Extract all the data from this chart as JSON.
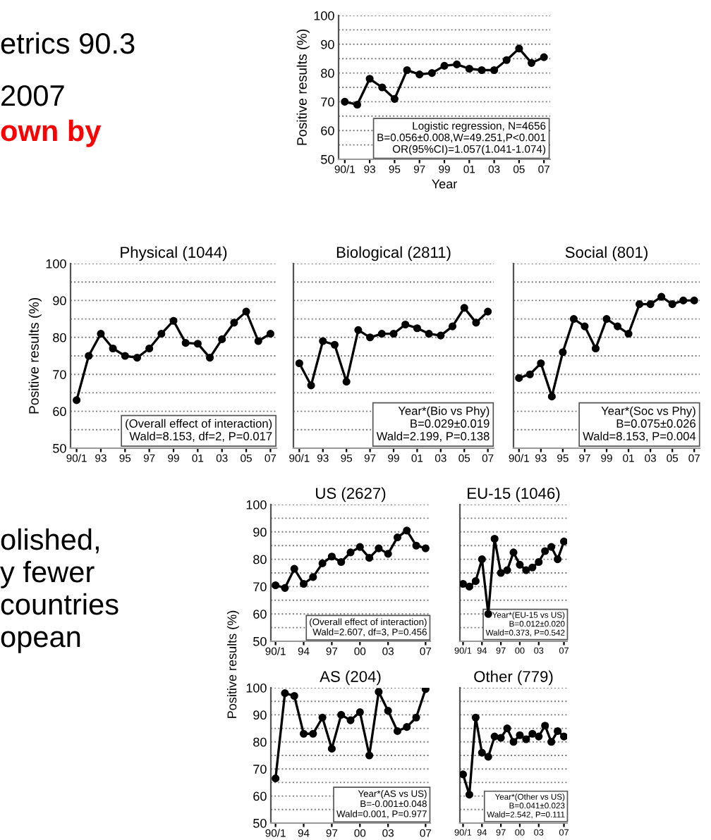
{
  "chart_data": [
    {
      "type": "line",
      "xlabel": "Year",
      "ylabel": "Positive results (%)",
      "x": [
        1991,
        1992,
        1993,
        1994,
        1995,
        1996,
        1997,
        1998,
        1999,
        2000,
        2001,
        2002,
        2003,
        2004,
        2005,
        2006,
        2007
      ],
      "xlim": [
        1990.5,
        2007.5
      ],
      "xticks": [
        {
          "value": 1991,
          "label": "90/1"
        },
        {
          "value": 1993,
          "label": "93"
        },
        {
          "value": 1995,
          "label": "95"
        },
        {
          "value": 1997,
          "label": "97"
        },
        {
          "value": 1999,
          "label": "99"
        },
        {
          "value": 2001,
          "label": "01"
        },
        {
          "value": 2003,
          "label": "03"
        },
        {
          "value": 2005,
          "label": "05"
        },
        {
          "value": 2007,
          "label": "07"
        }
      ],
      "ylim": [
        50,
        100
      ],
      "yticks": [
        50,
        {
          "value": 55,
          "label": null
        },
        60,
        {
          "value": 65,
          "label": null
        },
        70,
        {
          "value": 75,
          "label": null
        },
        80,
        {
          "value": 85,
          "label": null
        },
        90,
        {
          "value": 95,
          "label": null
        },
        100
      ],
      "grid": "y",
      "marker": "circle",
      "line_style": "solid",
      "series": [
        {
          "color": "#000000",
          "values": [
            70,
            69,
            78,
            75,
            71,
            81,
            79.5,
            80,
            82.5,
            83,
            81.5,
            81,
            81,
            84.5,
            88.5,
            83.5,
            85.5
          ]
        }
      ],
      "annotations": [
        "Logistic regression, N=4656\nB=0.056±0.008,W=49.251,P<0.001\nOR(95%CI)=1.057(1.041-1.074)",
        "etrics 90.3",
        "2007",
        "own by",
        "olished,",
        "y fewer",
        "countries",
        "opean"
      ]
    },
    {
      "type": "line",
      "title": "Physical (1044)",
      "ylabel": "Positive results (%)",
      "x": [
        1991,
        1992,
        1993,
        1994,
        1995,
        1996,
        1997,
        1998,
        1999,
        2000,
        2001,
        2002,
        2003,
        2004,
        2005,
        2006,
        2007
      ],
      "xlim": [
        1990.5,
        2007.5
      ],
      "xticks": [
        {
          "value": 1991,
          "label": "90/1"
        },
        {
          "value": 1993,
          "label": "93"
        },
        {
          "value": 1995,
          "label": "95"
        },
        {
          "value": 1997,
          "label": "97"
        },
        {
          "value": 1999,
          "label": "99"
        },
        {
          "value": 2001,
          "label": "01"
        },
        {
          "value": 2003,
          "label": "03"
        },
        {
          "value": 2005,
          "label": "05"
        },
        {
          "value": 2007,
          "label": "07"
        }
      ],
      "ylim": [
        50,
        100
      ],
      "yticks": [
        50,
        {
          "value": 55,
          "label": null
        },
        60,
        {
          "value": 65,
          "label": null
        },
        70,
        {
          "value": 75,
          "label": null
        },
        80,
        {
          "value": 85,
          "label": null
        },
        90,
        {
          "value": 95,
          "label": null
        },
        100
      ],
      "grid": "y",
      "marker": "circle",
      "line_style": "solid",
      "series": [
        {
          "color": "#000000",
          "values": [
            63,
            75,
            81,
            77,
            75,
            74.5,
            77,
            81,
            84.5,
            78.5,
            78.3,
            74.5,
            79.5,
            84,
            87,
            79,
            81
          ]
        }
      ],
      "annotations": [
        "(Overall effect of interaction)\nWald=8.153, df=2, P=0.017"
      ]
    },
    {
      "type": "line",
      "title": "Biological (2811)",
      "x": [
        1991,
        1992,
        1993,
        1994,
        1995,
        1996,
        1997,
        1998,
        1999,
        2000,
        2001,
        2002,
        2003,
        2004,
        2005,
        2006,
        2007
      ],
      "xlim": [
        1990.5,
        2007.5
      ],
      "xticks": [
        {
          "value": 1991,
          "label": "90/1"
        },
        {
          "value": 1993,
          "label": "93"
        },
        {
          "value": 1995,
          "label": "95"
        },
        {
          "value": 1997,
          "label": "97"
        },
        {
          "value": 1999,
          "label": "99"
        },
        {
          "value": 2001,
          "label": "01"
        },
        {
          "value": 2003,
          "label": "03"
        },
        {
          "value": 2005,
          "label": "05"
        },
        {
          "value": 2007,
          "label": "07"
        }
      ],
      "ylim": [
        50,
        100
      ],
      "yticks": [
        50,
        {
          "value": 55,
          "label": null
        },
        60,
        {
          "value": 65,
          "label": null
        },
        70,
        {
          "value": 75,
          "label": null
        },
        80,
        {
          "value": 85,
          "label": null
        },
        90,
        {
          "value": 95,
          "label": null
        },
        100
      ],
      "grid": "y",
      "marker": "circle",
      "line_style": "solid",
      "tick_labels": "x",
      "series": [
        {
          "color": "#000000",
          "values": [
            73,
            67,
            79,
            78,
            68,
            82,
            80,
            81,
            81,
            83.5,
            82.5,
            81,
            80.5,
            83,
            88,
            84,
            87
          ]
        }
      ],
      "annotations": [
        "Year*(Bio vs Phy)\nB=0.029±0.019\nWald=2.199, P=0.138"
      ]
    },
    {
      "type": "line",
      "title": "Social (801)",
      "x": [
        1991,
        1992,
        1993,
        1994,
        1995,
        1996,
        1997,
        1998,
        1999,
        2000,
        2001,
        2002,
        2003,
        2004,
        2005,
        2006,
        2007
      ],
      "xlim": [
        1990.5,
        2007.5
      ],
      "xticks": [
        {
          "value": 1991,
          "label": "90/1"
        },
        {
          "value": 1993,
          "label": "93"
        },
        {
          "value": 1995,
          "label": "95"
        },
        {
          "value": 1997,
          "label": "97"
        },
        {
          "value": 1999,
          "label": "99"
        },
        {
          "value": 2001,
          "label": "01"
        },
        {
          "value": 2003,
          "label": "03"
        },
        {
          "value": 2005,
          "label": "05"
        },
        {
          "value": 2007,
          "label": "07"
        }
      ],
      "ylim": [
        50,
        100
      ],
      "yticks": [
        50,
        {
          "value": 55,
          "label": null
        },
        60,
        {
          "value": 65,
          "label": null
        },
        70,
        {
          "value": 75,
          "label": null
        },
        80,
        {
          "value": 85,
          "label": null
        },
        90,
        {
          "value": 95,
          "label": null
        },
        100
      ],
      "grid": "y",
      "marker": "circle",
      "line_style": "solid",
      "tick_labels": "x",
      "series": [
        {
          "color": "#000000",
          "values": [
            69,
            70,
            73,
            64,
            76,
            85,
            83,
            77,
            85,
            83,
            81,
            89,
            89,
            91,
            89,
            90,
            90
          ]
        }
      ],
      "annotations": [
        "Year*(Soc vs Phy)\nB=0.075±0.026\nWald=8.153, P=0.004"
      ]
    },
    {
      "type": "line",
      "title": "US (2627)",
      "ylabel": "Positive results (%)",
      "x": [
        1991,
        1992,
        1993,
        1994,
        1995,
        1996,
        1997,
        1998,
        1999,
        2000,
        2001,
        2002,
        2003,
        2004,
        2005,
        2006,
        2007
      ],
      "xlim": [
        1990.5,
        2007.5
      ],
      "xticks": [
        {
          "value": 1991,
          "label": "90/1"
        },
        {
          "value": 1994,
          "label": "94"
        },
        {
          "value": 1997,
          "label": "97"
        },
        {
          "value": 2000,
          "label": "00"
        },
        {
          "value": 2003,
          "label": "03"
        },
        {
          "value": 2007,
          "label": "07"
        }
      ],
      "ylim": [
        50,
        100
      ],
      "yticks": [
        50,
        {
          "value": 55,
          "label": null
        },
        60,
        {
          "value": 65,
          "label": null
        },
        70,
        {
          "value": 75,
          "label": null
        },
        80,
        {
          "value": 85,
          "label": null
        },
        90,
        {
          "value": 95,
          "label": null
        },
        100
      ],
      "grid": "y",
      "marker": "circle",
      "line_style": "solid",
      "series": [
        {
          "color": "#000000",
          "values": [
            70.5,
            69.5,
            76.5,
            71,
            73.5,
            78.5,
            81,
            79,
            82.5,
            84.5,
            80.5,
            84,
            82,
            88,
            90.5,
            85,
            84
          ]
        }
      ],
      "annotations": [
        "(Overall effect of interaction)\nWald=2.607, df=3, P=0.456"
      ]
    },
    {
      "type": "line",
      "title": "EU-15 (1046)",
      "x": [
        1991,
        1992,
        1993,
        1994,
        1995,
        1996,
        1997,
        1998,
        1999,
        2000,
        2001,
        2002,
        2003,
        2004,
        2005,
        2006,
        2007
      ],
      "xlim": [
        1990.5,
        2007.5
      ],
      "xticks": [
        {
          "value": 1991,
          "label": "90/1"
        },
        {
          "value": 1994,
          "label": "94"
        },
        {
          "value": 1997,
          "label": "97"
        },
        {
          "value": 2000,
          "label": "00"
        },
        {
          "value": 2003,
          "label": "03"
        },
        {
          "value": 2007,
          "label": "07"
        }
      ],
      "ylim": [
        50,
        100
      ],
      "yticks": [
        50,
        {
          "value": 55,
          "label": null
        },
        60,
        {
          "value": 65,
          "label": null
        },
        70,
        {
          "value": 75,
          "label": null
        },
        80,
        {
          "value": 85,
          "label": null
        },
        90,
        {
          "value": 95,
          "label": null
        },
        100
      ],
      "grid": "y",
      "marker": "circle",
      "line_style": "solid",
      "tick_labels": "x",
      "series": [
        {
          "color": "#000000",
          "values": [
            71,
            70,
            72,
            80,
            60,
            87.5,
            75,
            76,
            82.5,
            78,
            76,
            77,
            79,
            83,
            84.5,
            80,
            86.5
          ]
        }
      ],
      "annotations": [
        "Year*(EU-15 vs US)\nB=0.012±0.020\nWald=0.373, P=0.542"
      ]
    },
    {
      "type": "line",
      "title": "AS (204)",
      "x": [
        1991,
        1992,
        1993,
        1994,
        1995,
        1996,
        1997,
        1998,
        1999,
        2000,
        2001,
        2002,
        2003,
        2004,
        2005,
        2006,
        2007
      ],
      "xlim": [
        1990.5,
        2007.5
      ],
      "xticks": [
        {
          "value": 1991,
          "label": "90/1"
        },
        {
          "value": 1994,
          "label": "94"
        },
        {
          "value": 1997,
          "label": "97"
        },
        {
          "value": 2000,
          "label": "00"
        },
        {
          "value": 2003,
          "label": "03"
        },
        {
          "value": 2007,
          "label": "07"
        }
      ],
      "ylim": [
        50,
        100
      ],
      "yticks": [
        50,
        {
          "value": 55,
          "label": null
        },
        60,
        {
          "value": 65,
          "label": null
        },
        70,
        {
          "value": 75,
          "label": null
        },
        80,
        {
          "value": 85,
          "label": null
        },
        90,
        {
          "value": 95,
          "label": null
        },
        100
      ],
      "grid": "y",
      "marker": "circle",
      "line_style": "solid",
      "series": [
        {
          "color": "#000000",
          "values": [
            66.5,
            98,
            97,
            83,
            83,
            89,
            77.5,
            90,
            88,
            91,
            75,
            98.5,
            91.5,
            84,
            85.5,
            89,
            99.5
          ]
        }
      ],
      "annotations": [
        "Year*(AS vs US)\nB=-0.001±0.048\nWald=0.001, P=0.977"
      ]
    },
    {
      "type": "line",
      "title": "Other (779)",
      "x": [
        1991,
        1992,
        1993,
        1994,
        1995,
        1996,
        1997,
        1998,
        1999,
        2000,
        2001,
        2002,
        2003,
        2004,
        2005,
        2006,
        2007
      ],
      "xlim": [
        1990.5,
        2007.5
      ],
      "xticks": [
        {
          "value": 1991,
          "label": "90/1"
        },
        {
          "value": 1994,
          "label": "94"
        },
        {
          "value": 1997,
          "label": "97"
        },
        {
          "value": 2000,
          "label": "00"
        },
        {
          "value": 2003,
          "label": "03"
        },
        {
          "value": 2007,
          "label": "07"
        }
      ],
      "ylim": [
        50,
        100
      ],
      "yticks": [
        50,
        {
          "value": 55,
          "label": null
        },
        60,
        {
          "value": 65,
          "label": null
        },
        70,
        {
          "value": 75,
          "label": null
        },
        80,
        {
          "value": 85,
          "label": null
        },
        90,
        {
          "value": 95,
          "label": null
        },
        100
      ],
      "grid": "y",
      "marker": "circle",
      "line_style": "solid",
      "tick_labels": "x",
      "series": [
        {
          "color": "#000000",
          "values": [
            68,
            60.5,
            89,
            76,
            74.5,
            82,
            81.5,
            85,
            80,
            82.5,
            81,
            83,
            82,
            86,
            80,
            84,
            82
          ]
        }
      ],
      "annotations": [
        "Year*(Other vs US)\nB=0.041±0.023\nWald=2.542, P=0.111"
      ]
    }
  ]
}
